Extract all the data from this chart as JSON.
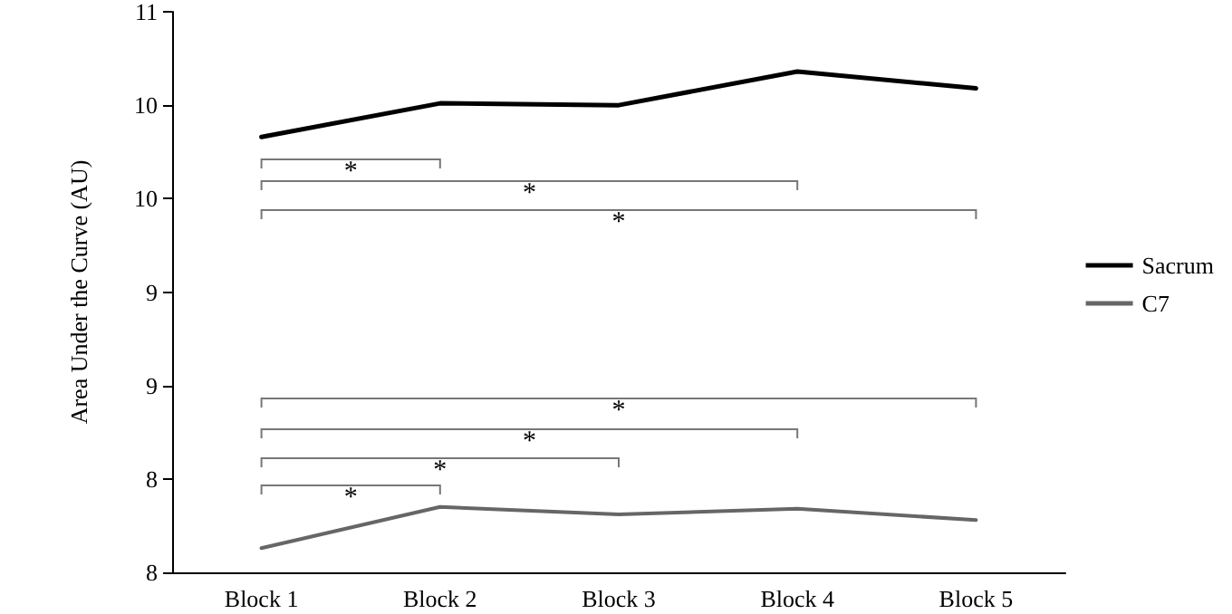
{
  "chart_data": {
    "type": "line",
    "ylabel": "Area Under the Curve (AU)",
    "categories": [
      "Block 1",
      "Block 2",
      "Block 3",
      "Block 4",
      "Block 5"
    ],
    "series": [
      {
        "name": "Sacrum",
        "color": "#000000",
        "values": [
          10.33,
          10.51,
          10.5,
          10.68,
          10.59
        ]
      },
      {
        "name": "C7",
        "color": "#666666",
        "values": [
          8.13,
          8.35,
          8.31,
          8.34,
          8.28
        ]
      }
    ],
    "ylim": [
      8,
      11
    ],
    "yticks": [
      8,
      {
        "value": 8.5,
        "label": "8"
      },
      9,
      {
        "value": 9.5,
        "label": "9"
      },
      10,
      {
        "value": 10.5,
        "label": "10"
      },
      11
    ],
    "annotations": [
      "*",
      "*",
      "*",
      "*",
      "*",
      "*",
      "*"
    ],
    "grid": false,
    "legend": "right",
    "marker": "none",
    "line_style": "solid"
  }
}
